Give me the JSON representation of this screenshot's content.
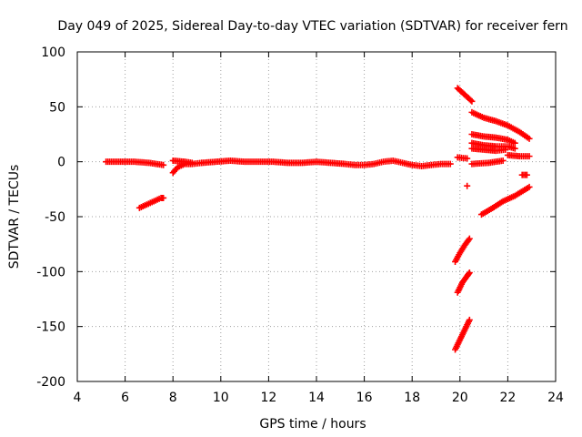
{
  "chart_data": {
    "type": "scatter",
    "title": "Day 049 of 2025, Sidereal Day-to-day VTEC variation (SDTVAR) for receiver fern",
    "xlabel": "GPS time / hours",
    "ylabel": "SDTVAR / TECUs",
    "xlim": [
      4,
      24
    ],
    "ylim": [
      -200,
      100
    ],
    "xticks": [
      "4",
      "6",
      "8",
      "10",
      "12",
      "14",
      "16",
      "18",
      "20",
      "22",
      "24"
    ],
    "yticks": [
      "100",
      "50",
      "0",
      "-50",
      "-100",
      "-150",
      "-200"
    ],
    "grid": true,
    "marker": "plus",
    "series_color": "#ff0000",
    "segments": [
      [
        [
          5.2,
          0
        ],
        [
          5.8,
          0
        ],
        [
          6.4,
          0
        ],
        [
          7.0,
          -1
        ],
        [
          7.6,
          -3
        ]
      ],
      [
        [
          6.6,
          -42
        ],
        [
          6.9,
          -39
        ],
        [
          7.2,
          -36
        ],
        [
          7.5,
          -33
        ],
        [
          7.6,
          -33
        ]
      ],
      [
        [
          8.0,
          -10
        ],
        [
          8.2,
          -5
        ],
        [
          8.5,
          -2
        ],
        [
          8.8,
          -2
        ],
        [
          9.2,
          -1
        ]
      ],
      [
        [
          8.0,
          1
        ],
        [
          8.5,
          0
        ],
        [
          8.8,
          -1
        ]
      ],
      [
        [
          9.2,
          -1
        ],
        [
          9.8,
          0
        ],
        [
          10.4,
          1
        ],
        [
          11.0,
          0
        ],
        [
          11.6,
          0
        ],
        [
          12.2,
          0
        ],
        [
          12.8,
          -1
        ],
        [
          13.4,
          -1
        ],
        [
          14.0,
          0
        ],
        [
          14.6,
          -1
        ],
        [
          15.2,
          -2
        ],
        [
          15.6,
          -3
        ],
        [
          16.0,
          -3
        ],
        [
          16.4,
          -2
        ],
        [
          16.8,
          0
        ],
        [
          17.2,
          1
        ],
        [
          17.6,
          -1
        ],
        [
          18.0,
          -3
        ],
        [
          18.4,
          -4
        ],
        [
          18.8,
          -3
        ],
        [
          19.2,
          -2
        ],
        [
          19.6,
          -2
        ]
      ],
      [
        [
          19.9,
          4
        ],
        [
          20.3,
          3
        ]
      ],
      [
        [
          19.9,
          67
        ],
        [
          20.1,
          63
        ],
        [
          20.3,
          59
        ],
        [
          20.5,
          55
        ]
      ],
      [
        [
          20.5,
          45
        ],
        [
          21.0,
          40
        ],
        [
          21.5,
          37
        ],
        [
          22.0,
          33
        ],
        [
          22.5,
          27
        ],
        [
          22.9,
          21
        ]
      ],
      [
        [
          20.5,
          25
        ],
        [
          21.0,
          23
        ],
        [
          21.5,
          22
        ],
        [
          22.0,
          20
        ],
        [
          22.3,
          17
        ]
      ],
      [
        [
          20.5,
          17
        ],
        [
          21.0,
          15
        ],
        [
          21.5,
          14
        ],
        [
          22.0,
          14
        ],
        [
          22.3,
          12
        ]
      ],
      [
        [
          20.5,
          12
        ],
        [
          21.0,
          11
        ],
        [
          21.5,
          10
        ],
        [
          21.9,
          11
        ]
      ],
      [
        [
          22.0,
          6
        ],
        [
          22.5,
          5
        ],
        [
          22.9,
          5
        ]
      ],
      [
        [
          20.5,
          -2
        ],
        [
          21.2,
          -1
        ],
        [
          21.8,
          1
        ]
      ],
      [
        [
          20.3,
          -22
        ]
      ],
      [
        [
          22.6,
          -12
        ],
        [
          22.8,
          -12
        ]
      ],
      [
        [
          20.9,
          -48
        ],
        [
          21.3,
          -43
        ],
        [
          21.8,
          -36
        ],
        [
          22.3,
          -31
        ],
        [
          22.9,
          -23
        ]
      ],
      [
        [
          19.8,
          -91
        ],
        [
          20.0,
          -83
        ],
        [
          20.2,
          -76
        ],
        [
          20.4,
          -70
        ]
      ],
      [
        [
          19.9,
          -119
        ],
        [
          20.1,
          -110
        ],
        [
          20.3,
          -104
        ],
        [
          20.4,
          -101
        ]
      ],
      [
        [
          19.8,
          -171
        ],
        [
          20.0,
          -162
        ],
        [
          20.2,
          -153
        ],
        [
          20.4,
          -144
        ]
      ]
    ]
  }
}
